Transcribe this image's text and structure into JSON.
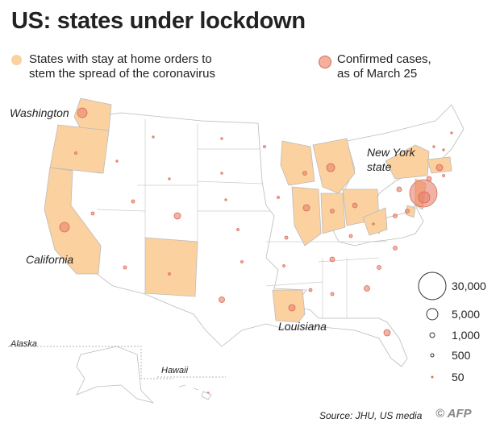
{
  "title": "US: states under lockdown",
  "legend": {
    "lockdown_label_line1": "States with stay at home orders to",
    "lockdown_label_line2": "stem the spread of the coronavirus",
    "cases_label_line1": "Confirmed cases,",
    "cases_label_line2": "as of March 25",
    "lockdown_color": "#fbd1a0",
    "cases_color": "#e8816a"
  },
  "state_labels": {
    "washington": "Washington",
    "california": "California",
    "new_york_line1": "New York",
    "new_york_line2": "state",
    "louisiana": "Louisiana",
    "alaska": "Alaska",
    "hawaii": "Hawaii"
  },
  "size_legend": [
    "30,000",
    "5,000",
    "1,000",
    "500",
    "50"
  ],
  "source": "Source: JHU, US media",
  "logo": "© AFP"
}
